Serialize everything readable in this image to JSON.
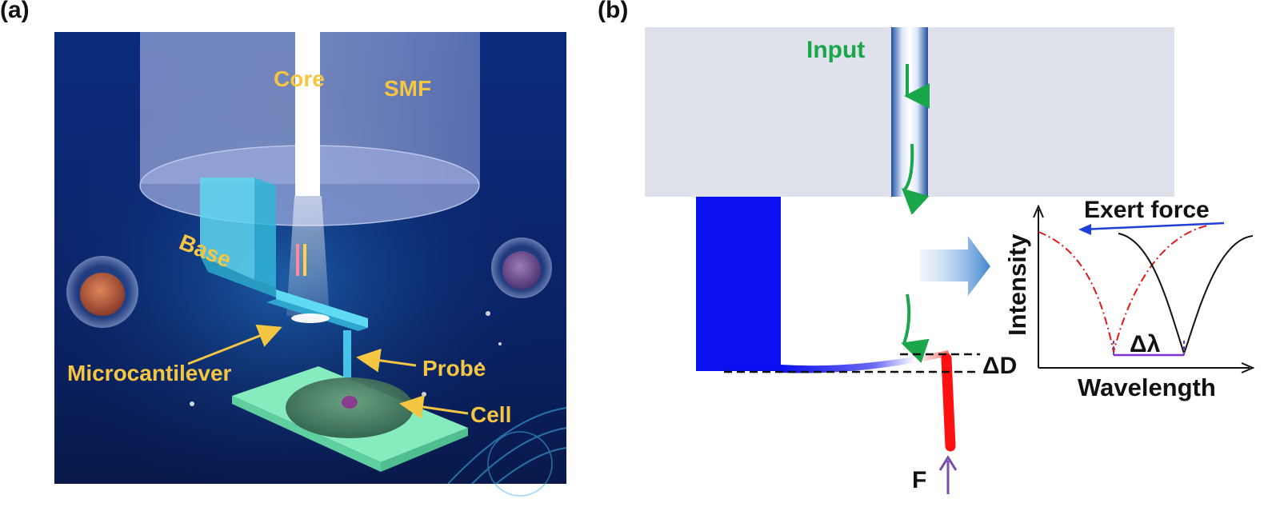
{
  "panel_a": {
    "label": "(a)",
    "labels": {
      "core": "Core",
      "smf": "SMF",
      "base": "Base",
      "microcantilever": "Microcantilever",
      "probe": "Probe",
      "cell": "Cell"
    },
    "colors": {
      "background_top": "#0a2a7a",
      "background_bottom": "#0b1f5c",
      "label": "#f5c642",
      "cantilever": "#4fd8f0",
      "substrate": "#7fe6b6"
    }
  },
  "panel_b": {
    "label": "(b)",
    "labels": {
      "input": "Input",
      "delta_d": "ΔD",
      "force": "F",
      "exert_force": "Exert force",
      "intensity": "Intensity",
      "wavelength": "Wavelength",
      "delta_lambda": "Δλ"
    },
    "colors": {
      "fiber": "#dfe2ea",
      "base_block": "#0a10f0",
      "probe": "#ff1010",
      "input_arrow": "#1aa64a",
      "force_arrow": "#7a4ea8",
      "shift_arrow": "#1f3fd8",
      "curve_after": "#e01818",
      "curve_before": "#111111",
      "delta_lambda": "#7a33cc"
    }
  }
}
